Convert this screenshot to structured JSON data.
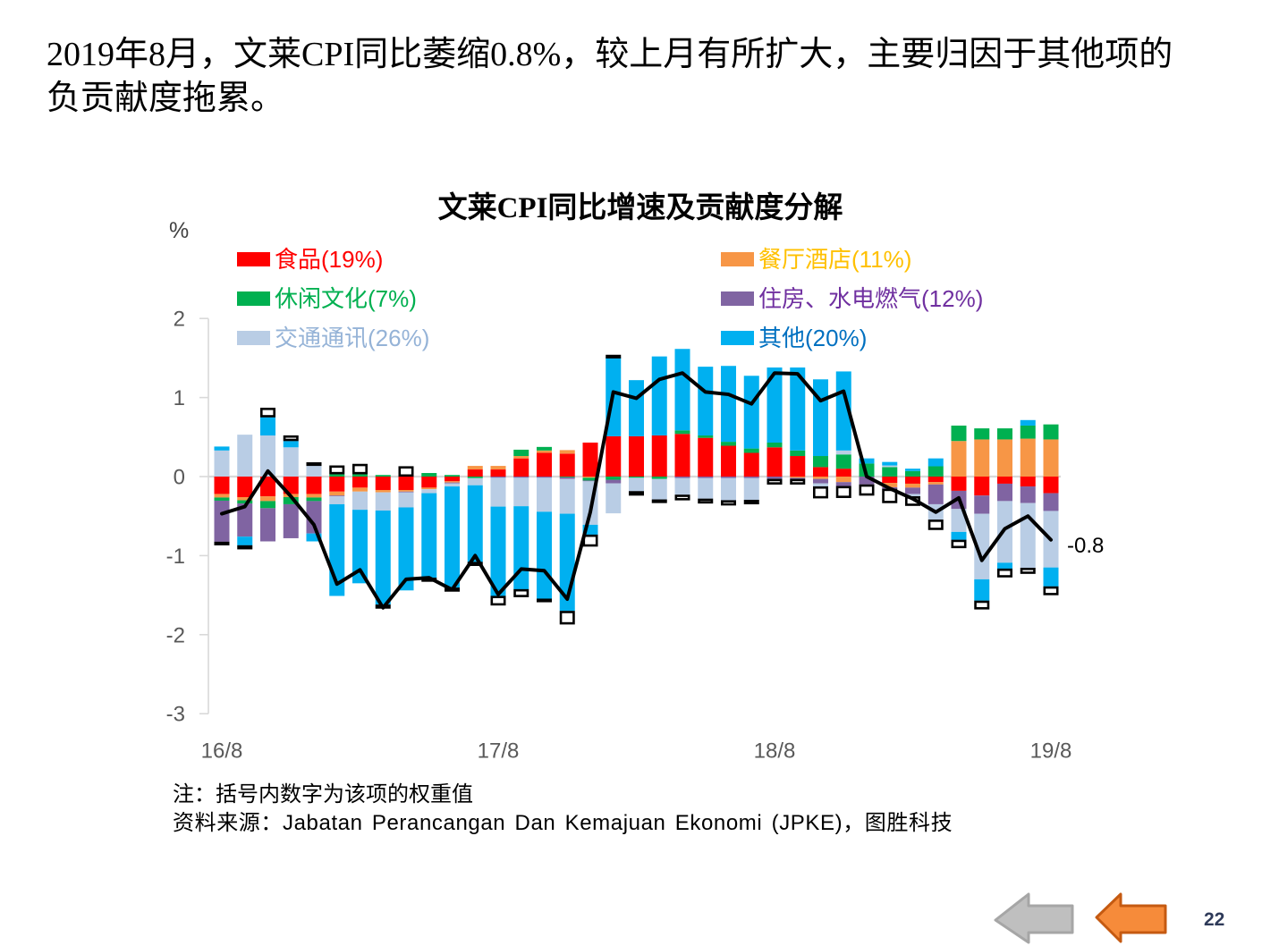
{
  "headline": {
    "lines": [
      "2019年8月，文莱CPI同比萎缩0.8%，较上月有所扩大，主要归因于其他项的",
      "负贡献度拖累。"
    ]
  },
  "chart_data": {
    "type": "bar",
    "stacked": true,
    "title": "文莱CPI同比增速及贡献度分解",
    "xlabel": "",
    "ylabel": "%",
    "ylim": [
      -3,
      2
    ],
    "yticks": [
      2,
      1,
      0,
      -1,
      -2,
      -3
    ],
    "ytick_labels": [
      "2",
      "1",
      "0",
      "-1",
      "-2",
      "-3"
    ],
    "x_tick_labels": [
      "16/8",
      "17/8",
      "18/8",
      "19/8"
    ],
    "x_tick_step": 12,
    "grid": false,
    "legend_position": "top",
    "series": [
      {
        "name": "食品(19%)",
        "color": "#FF0000",
        "label_color": "#FF0000",
        "values": [
          -0.22,
          -0.26,
          -0.25,
          -0.22,
          -0.22,
          -0.19,
          -0.14,
          -0.17,
          -0.17,
          -0.14,
          -0.06,
          0.09,
          0.09,
          0.23,
          0.3,
          0.29,
          0.43,
          0.51,
          0.51,
          0.52,
          0.54,
          0.49,
          0.39,
          0.3,
          0.37,
          0.26,
          0.12,
          0.1,
          0,
          -0.08,
          -0.09,
          -0.07,
          -0.18,
          -0.24,
          -0.09,
          -0.125,
          -0.21
        ]
      },
      {
        "name": "餐厅酒店(11%)",
        "color": "#F79646",
        "label_color": "#FFC000",
        "values": [
          -0.045,
          -0.04,
          -0.06,
          -0.04,
          -0.045,
          -0.05,
          -0.05,
          -0.03,
          -0.02,
          -0.02,
          -0.015,
          0.045,
          0.045,
          0.03,
          0.03,
          0.045,
          -0.015,
          0,
          0,
          0,
          0,
          0,
          0,
          0,
          0,
          -0.015,
          -0.03,
          -0.07,
          0,
          -0.055,
          -0.05,
          -0.03,
          0.45,
          0.47,
          0.47,
          0.48,
          0.47
        ]
      },
      {
        "name": "休闲文化(7%)",
        "color": "#00B050",
        "label_color": "#00B050",
        "values": [
          -0.04,
          -0.04,
          -0.09,
          -0.09,
          -0.045,
          0.03,
          0.03,
          0.02,
          0,
          0.045,
          0.02,
          -0.02,
          0,
          0.08,
          0.045,
          -0.01,
          -0.035,
          -0.04,
          -0.015,
          -0.03,
          0.045,
          0.03,
          0.05,
          0.055,
          0.06,
          0.07,
          0.14,
          0.18,
          0.165,
          0.12,
          0.07,
          0.13,
          0.195,
          0.14,
          0.14,
          0.165,
          0.19
        ]
      },
      {
        "name": "住房、水电燃气(12%)",
        "color": "#8064A2",
        "label_color": "#7030A0",
        "values": [
          -0.52,
          -0.42,
          -0.42,
          -0.43,
          -0.41,
          -0.01,
          0,
          0,
          -0.01,
          0,
          -0.01,
          0,
          -0.015,
          -0.015,
          -0.015,
          -0.02,
          -0.01,
          -0.045,
          0,
          0,
          -0.02,
          -0.02,
          -0.02,
          -0.02,
          -0.03,
          -0.015,
          -0.055,
          -0.05,
          -0.1,
          -0.02,
          -0.08,
          -0.25,
          -0.23,
          -0.23,
          -0.22,
          -0.21,
          -0.225
        ]
      },
      {
        "name": "交通通讯(26%)",
        "color": "#B9CDE5",
        "label_color": "#95B3D7",
        "values": [
          0.33,
          0.53,
          0.52,
          0.37,
          0.14,
          -0.1,
          -0.23,
          -0.23,
          -0.19,
          -0.05,
          -0.04,
          -0.09,
          -0.365,
          -0.36,
          -0.43,
          -0.44,
          -0.55,
          -0.38,
          -0.17,
          -0.26,
          -0.21,
          -0.26,
          -0.28,
          -0.275,
          0,
          0,
          -0.04,
          0.05,
          0,
          0.02,
          -0.03,
          -0.195,
          -0.29,
          -0.83,
          -0.78,
          -0.82,
          -0.715
        ]
      },
      {
        "name": "其他(20%)",
        "color": "#00B0F0",
        "label_color": "#0070C0",
        "values": [
          0.05,
          -0.11,
          0.23,
          0.08,
          -0.1,
          -1.16,
          -0.93,
          -1.19,
          -1.05,
          -1.07,
          -1.28,
          -0.97,
          -1.13,
          -1.05,
          -1.1,
          -1.23,
          -0.125,
          1.0,
          0.71,
          1.0,
          1.03,
          0.87,
          0.96,
          0.92,
          0.95,
          1.05,
          0.97,
          1.0,
          0.065,
          0.045,
          0.03,
          0.1,
          -0.1,
          -0.27,
          -0.075,
          0.07,
          -0.24
        ]
      }
    ],
    "residual": [
      -0.03,
      -0.05,
      0.12,
      0.07,
      0.04,
      0.11,
      0.13,
      -0.05,
      0.13,
      -0.05,
      -0.05,
      -0.05,
      -0.12,
      -0.1,
      -0.03,
      -0.17,
      -0.15,
      0.03,
      -0.055,
      -0.03,
      -0.07,
      -0.06,
      -0.065,
      -0.055,
      -0.07,
      -0.07,
      -0.15,
      -0.15,
      -0.14,
      -0.18,
      -0.12,
      -0.13,
      -0.105,
      -0.11,
      -0.11,
      -0.075,
      -0.11
    ],
    "total": {
      "type": "line",
      "color": "#000000",
      "values": [
        -0.47,
        -0.38,
        0.07,
        -0.25,
        -0.61,
        -1.36,
        -1.18,
        -1.66,
        -1.3,
        -1.28,
        -1.43,
        -1.0,
        -1.49,
        -1.17,
        -1.19,
        -1.55,
        -0.45,
        1.07,
        0.99,
        1.23,
        1.31,
        1.07,
        1.04,
        0.92,
        1.31,
        1.3,
        0.96,
        1.08,
        0.0,
        -0.15,
        -0.28,
        -0.45,
        -0.27,
        -1.06,
        -0.66,
        -0.5,
        -0.8
      ],
      "end_label": "-0.8"
    }
  },
  "notes": {
    "note": "注：括号内数字为该项的权重值",
    "source": "资料来源：Jabatan Perancangan Dan Kemajuan Ekonomi (JPKE)，图胜科技"
  },
  "navigation": {
    "prev_icon": "arrow-left-icon",
    "prev_color": "#BFBFBF",
    "back_icon": "arrow-left-icon",
    "back_color": "#F68B3A"
  },
  "page_number": "22"
}
